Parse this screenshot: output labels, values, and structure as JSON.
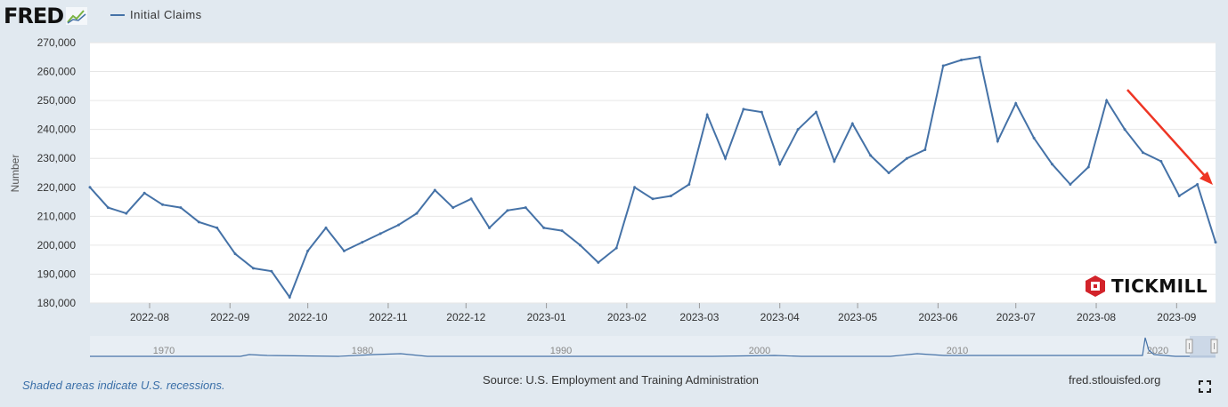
{
  "header": {
    "logo_text": "FRED",
    "logo_icon": "fred-chart-icon",
    "legend_label": "Initial Claims"
  },
  "footer": {
    "note": "Shaded areas indicate U.S. recessions.",
    "source": "Source: U.S. Employment and Training Administration",
    "url": "fred.stlouisfed.org",
    "fullscreen_icon": "fullscreen-icon"
  },
  "watermark": {
    "text": "TICKMILL",
    "icon": "tickmill-logo-icon"
  },
  "colors": {
    "series": "#4572a7",
    "background": "#e1e9f0",
    "plot_background": "#ffffff",
    "annotation_arrow": "#ee3524",
    "navigator_fill": "#c4d2e4"
  },
  "chart_data": {
    "type": "line",
    "title": "",
    "xlabel": "",
    "ylabel": "Number",
    "ylim": [
      180000,
      270000
    ],
    "yticks": [
      180000,
      190000,
      200000,
      210000,
      220000,
      230000,
      240000,
      250000,
      260000,
      270000
    ],
    "ytick_labels": [
      "180,000",
      "190,000",
      "200,000",
      "210,000",
      "220,000",
      "230,000",
      "240,000",
      "250,000",
      "260,000",
      "270,000"
    ],
    "xtick_labels": [
      "2022-08",
      "2022-09",
      "2022-10",
      "2022-11",
      "2022-12",
      "2023-01",
      "2023-02",
      "2023-03",
      "2023-04",
      "2023-05",
      "2023-06",
      "2023-07",
      "2023-08",
      "2023-09"
    ],
    "grid": true,
    "legend": "top-left",
    "series": [
      {
        "name": "Initial Claims",
        "start_date": "2022-07-09",
        "interval": "weekly",
        "values": [
          220000,
          213000,
          211000,
          218000,
          214000,
          213000,
          208000,
          206000,
          197000,
          192000,
          191000,
          182000,
          198000,
          206000,
          198000,
          201000,
          204000,
          207000,
          211000,
          219000,
          213000,
          216000,
          206000,
          212000,
          213000,
          206000,
          205000,
          200000,
          194000,
          199000,
          220000,
          216000,
          217000,
          221000,
          245000,
          230000,
          247000,
          246000,
          228000,
          240000,
          246000,
          229000,
          242000,
          231000,
          225000,
          230000,
          233000,
          262000,
          264000,
          265000,
          236000,
          249000,
          237000,
          228000,
          221000,
          227000,
          250000,
          240000,
          232000,
          229000,
          217000,
          221000,
          201000
        ]
      }
    ],
    "annotations": [
      {
        "type": "arrow",
        "direction": "down-right",
        "description": "red arrow indicating downward trend"
      }
    ],
    "navigator": {
      "tick_labels": [
        "1970",
        "1980",
        "1990",
        "2000",
        "2010",
        "2020"
      ]
    }
  }
}
